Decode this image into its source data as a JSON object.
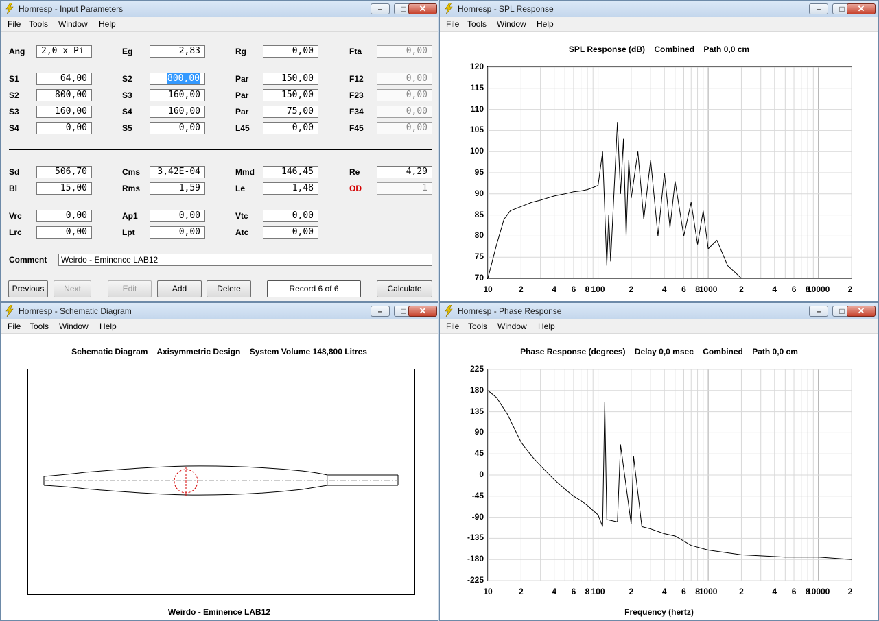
{
  "windows": {
    "input": {
      "title": "Hornresp - Input Parameters"
    },
    "spl": {
      "title": "Hornresp - SPL Response"
    },
    "schematic": {
      "title": "Hornresp - Schematic Diagram"
    },
    "phase": {
      "title": "Hornresp - Phase Response"
    }
  },
  "menu": {
    "file": "File",
    "tools": "Tools",
    "window": "Window",
    "help": "Help"
  },
  "params": {
    "row1": [
      {
        "label": "Ang",
        "value": "2,0 x Pi"
      },
      {
        "label": "Eg",
        "value": "2,83"
      },
      {
        "label": "Rg",
        "value": "0,00"
      },
      {
        "label": "Fta",
        "value": "0,00"
      }
    ],
    "rows": [
      [
        {
          "label": "S1",
          "value": "64,00"
        },
        {
          "label": "S2",
          "value": "800,00"
        },
        {
          "label": "Par",
          "value": "150,00"
        },
        {
          "label": "F12",
          "value": "0,00"
        }
      ],
      [
        {
          "label": "S2",
          "value": "800,00"
        },
        {
          "label": "S3",
          "value": "160,00"
        },
        {
          "label": "Par",
          "value": "150,00"
        },
        {
          "label": "F23",
          "value": "0,00"
        }
      ],
      [
        {
          "label": "S3",
          "value": "160,00"
        },
        {
          "label": "S4",
          "value": "160,00"
        },
        {
          "label": "Par",
          "value": "75,00"
        },
        {
          "label": "F34",
          "value": "0,00"
        }
      ],
      [
        {
          "label": "S4",
          "value": "0,00"
        },
        {
          "label": "S5",
          "value": "0,00"
        },
        {
          "label": "L45",
          "value": "0,00"
        },
        {
          "label": "F45",
          "value": "0,00"
        }
      ]
    ],
    "driver": [
      [
        {
          "label": "Sd",
          "value": "506,70"
        },
        {
          "label": "Cms",
          "value": "3,42E-04"
        },
        {
          "label": "Mmd",
          "value": "146,45"
        },
        {
          "label": "Re",
          "value": "4,29"
        }
      ],
      [
        {
          "label": "Bl",
          "value": "15,00"
        },
        {
          "label": "Rms",
          "value": "1,59"
        },
        {
          "label": "Le",
          "value": "1,48"
        },
        {
          "label": "OD",
          "value": "1"
        }
      ]
    ],
    "chamber": [
      [
        {
          "label": "Vrc",
          "value": "0,00"
        },
        {
          "label": "Ap1",
          "value": "0,00"
        },
        {
          "label": "Vtc",
          "value": "0,00"
        }
      ],
      [
        {
          "label": "Lrc",
          "value": "0,00"
        },
        {
          "label": "Lpt",
          "value": "0,00"
        },
        {
          "label": "Atc",
          "value": "0,00"
        }
      ]
    ],
    "comment_label": "Comment",
    "comment": "Weirdo - Eminence LAB12"
  },
  "buttons": {
    "previous": "Previous",
    "next": "Next",
    "edit": "Edit",
    "add": "Add",
    "delete": "Delete",
    "record": "Record 6 of 6",
    "calculate": "Calculate"
  },
  "schematic": {
    "title": "Schematic Diagram    Axisymmetric Design    System Volume 148,800 Litres",
    "caption": "Weirdo - Eminence LAB12"
  },
  "spl_chart": {
    "title": "SPL Response (dB)    Combined    Path 0,0 cm",
    "y_ticks": [
      "120",
      "115",
      "110",
      "105",
      "100",
      "95",
      "90",
      "85",
      "80",
      "75",
      "70"
    ],
    "x_ticks": [
      "10",
      "2",
      "4",
      "6",
      "8",
      "100",
      "2",
      "4",
      "6",
      "8",
      "1000",
      "2",
      "4",
      "6",
      "8",
      "10000",
      "2"
    ]
  },
  "phase_chart": {
    "title": "Phase Response (degrees)    Delay 0,0 msec    Combined    Path 0,0 cm",
    "y_ticks": [
      "225",
      "180",
      "135",
      "90",
      "45",
      "0",
      "-45",
      "-90",
      "-135",
      "-180",
      "-225"
    ],
    "x_ticks": [
      "10",
      "2",
      "4",
      "6",
      "8",
      "100",
      "2",
      "4",
      "6",
      "8",
      "1000",
      "2",
      "4",
      "6",
      "8",
      "10000",
      "2"
    ],
    "xlabel": "Frequency (hertz)"
  },
  "chart_data": [
    {
      "type": "line",
      "title": "SPL Response (dB)    Combined    Path 0,0 cm",
      "xscale": "log",
      "xlim": [
        10,
        20000
      ],
      "ylim": [
        70,
        120
      ],
      "grid": true,
      "series": [
        {
          "x": [
            10,
            12,
            14,
            16,
            20,
            25,
            30,
            40,
            50,
            60,
            70,
            80,
            90,
            100,
            110,
            120,
            125,
            130,
            150,
            160,
            170,
            180,
            190,
            200,
            230,
            260,
            300,
            350,
            400,
            450,
            500,
            600,
            700,
            800,
            900,
            1000,
            1200,
            1500,
            2000
          ],
          "y": [
            70,
            78,
            84,
            86,
            87,
            88,
            88.5,
            89.5,
            90,
            90.5,
            90.7,
            91,
            91.5,
            92,
            100,
            73,
            85,
            74,
            107,
            90,
            103,
            80,
            98,
            89,
            100,
            84,
            98,
            80,
            95,
            82,
            93,
            80,
            88,
            78,
            86,
            77,
            79,
            73,
            70
          ]
        }
      ]
    },
    {
      "type": "line",
      "title": "Phase Response (degrees)    Delay 0,0 msec    Combined    Path 0,0 cm",
      "xlabel": "Frequency (hertz)",
      "xscale": "log",
      "xlim": [
        10,
        20000
      ],
      "ylim": [
        -225,
        225
      ],
      "grid": true,
      "series": [
        {
          "x": [
            10,
            12,
            15,
            20,
            25,
            30,
            40,
            50,
            60,
            70,
            80,
            100,
            110,
            115,
            120,
            150,
            160,
            200,
            210,
            250,
            300,
            400,
            500,
            700,
            1000,
            2000,
            5000,
            10000,
            20000
          ],
          "y": [
            180,
            165,
            130,
            70,
            40,
            20,
            -10,
            -30,
            -45,
            -55,
            -65,
            -85,
            -110,
            155,
            -95,
            -100,
            65,
            -105,
            40,
            -110,
            -115,
            -125,
            -130,
            -150,
            -160,
            -170,
            -175,
            -175,
            -180
          ]
        }
      ]
    }
  ]
}
